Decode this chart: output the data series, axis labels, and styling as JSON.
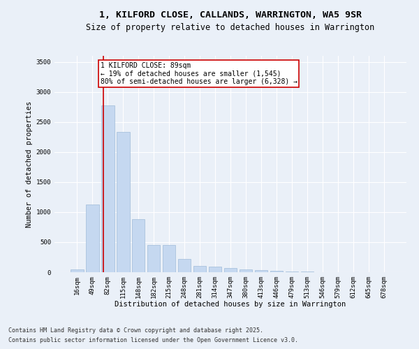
{
  "title_line1": "1, KILFORD CLOSE, CALLANDS, WARRINGTON, WA5 9SR",
  "title_line2": "Size of property relative to detached houses in Warrington",
  "xlabel": "Distribution of detached houses by size in Warrington",
  "ylabel": "Number of detached properties",
  "categories": [
    "16sqm",
    "49sqm",
    "82sqm",
    "115sqm",
    "148sqm",
    "182sqm",
    "215sqm",
    "248sqm",
    "281sqm",
    "314sqm",
    "347sqm",
    "380sqm",
    "413sqm",
    "446sqm",
    "479sqm",
    "513sqm",
    "546sqm",
    "579sqm",
    "612sqm",
    "645sqm",
    "678sqm"
  ],
  "values": [
    50,
    1130,
    2780,
    2340,
    880,
    450,
    450,
    215,
    100,
    90,
    65,
    45,
    30,
    20,
    15,
    10,
    5,
    5,
    5,
    3,
    2
  ],
  "bar_color": "#c5d8f0",
  "bar_edge_color": "#a0bcd8",
  "annotation_text": "1 KILFORD CLOSE: 89sqm\n← 19% of detached houses are smaller (1,545)\n80% of semi-detached houses are larger (6,328) →",
  "vline_x": 1.7,
  "vline_color": "#cc0000",
  "background_color": "#eaf0f8",
  "grid_color": "#ffffff",
  "footer_line1": "Contains HM Land Registry data © Crown copyright and database right 2025.",
  "footer_line2": "Contains public sector information licensed under the Open Government Licence v3.0.",
  "ylim": [
    0,
    3600
  ],
  "yticks": [
    0,
    500,
    1000,
    1500,
    2000,
    2500,
    3000,
    3500
  ],
  "title_fontsize": 9.5,
  "subtitle_fontsize": 8.5,
  "axis_label_fontsize": 7.5,
  "tick_fontsize": 6.5,
  "footer_fontsize": 6,
  "annotation_fontsize": 7,
  "font_family": "DejaVu Sans Mono"
}
